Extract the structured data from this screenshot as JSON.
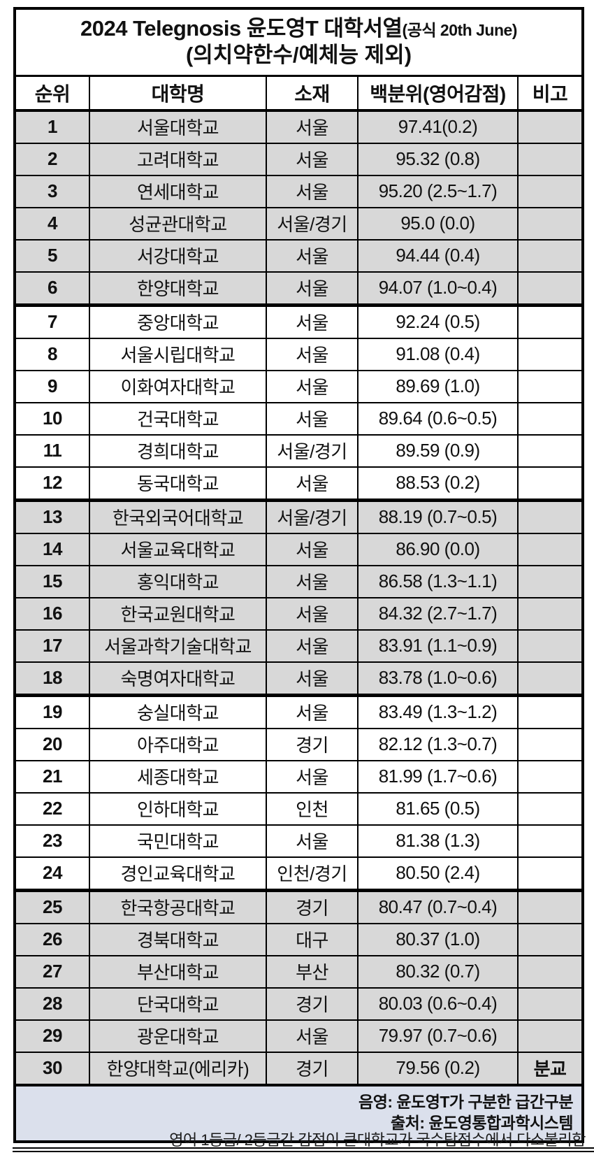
{
  "title": {
    "line1_main": "2024 Telegnosis 윤도영T 대학서열",
    "line1_sub": "(공식 20th June)",
    "line2": "(의치약한수/예체능 제외)"
  },
  "columns": [
    "순위",
    "대학명",
    "소재",
    "백분위(영어감점)",
    "비고"
  ],
  "rows": [
    {
      "rank": "1",
      "name": "서울대학교",
      "location": "서울",
      "percentile": "97.41(0.2)",
      "note": "",
      "shaded": true
    },
    {
      "rank": "2",
      "name": "고려대학교",
      "location": "서울",
      "percentile": "95.32 (0.8)",
      "note": "",
      "shaded": true
    },
    {
      "rank": "3",
      "name": "연세대학교",
      "location": "서울",
      "percentile": "95.20 (2.5~1.7)",
      "note": "",
      "shaded": true
    },
    {
      "rank": "4",
      "name": "성균관대학교",
      "location": "서울/경기",
      "percentile": "95.0 (0.0)",
      "note": "",
      "shaded": true
    },
    {
      "rank": "5",
      "name": "서강대학교",
      "location": "서울",
      "percentile": "94.44 (0.4)",
      "note": "",
      "shaded": true
    },
    {
      "rank": "6",
      "name": "한양대학교",
      "location": "서울",
      "percentile": "94.07 (1.0~0.4)",
      "note": "",
      "shaded": true
    },
    {
      "rank": "7",
      "name": "중앙대학교",
      "location": "서울",
      "percentile": "92.24 (0.5)",
      "note": "",
      "shaded": false
    },
    {
      "rank": "8",
      "name": "서울시립대학교",
      "location": "서울",
      "percentile": "91.08 (0.4)",
      "note": "",
      "shaded": false
    },
    {
      "rank": "9",
      "name": "이화여자대학교",
      "location": "서울",
      "percentile": "89.69 (1.0)",
      "note": "",
      "shaded": false
    },
    {
      "rank": "10",
      "name": "건국대학교",
      "location": "서울",
      "percentile": "89.64 (0.6~0.5)",
      "note": "",
      "shaded": false
    },
    {
      "rank": "11",
      "name": "경희대학교",
      "location": "서울/경기",
      "percentile": "89.59 (0.9)",
      "note": "",
      "shaded": false
    },
    {
      "rank": "12",
      "name": "동국대학교",
      "location": "서울",
      "percentile": "88.53 (0.2)",
      "note": "",
      "shaded": false
    },
    {
      "rank": "13",
      "name": "한국외국어대학교",
      "location": "서울/경기",
      "percentile": "88.19 (0.7~0.5)",
      "note": "",
      "shaded": true
    },
    {
      "rank": "14",
      "name": "서울교육대학교",
      "location": "서울",
      "percentile": "86.90 (0.0)",
      "note": "",
      "shaded": true
    },
    {
      "rank": "15",
      "name": "홍익대학교",
      "location": "서울",
      "percentile": "86.58 (1.3~1.1)",
      "note": "",
      "shaded": true
    },
    {
      "rank": "16",
      "name": "한국교원대학교",
      "location": "서울",
      "percentile": "84.32 (2.7~1.7)",
      "note": "",
      "shaded": true
    },
    {
      "rank": "17",
      "name": "서울과학기술대학교",
      "location": "서울",
      "percentile": "83.91 (1.1~0.9)",
      "note": "",
      "shaded": true
    },
    {
      "rank": "18",
      "name": "숙명여자대학교",
      "location": "서울",
      "percentile": "83.78 (1.0~0.6)",
      "note": "",
      "shaded": true
    },
    {
      "rank": "19",
      "name": "숭실대학교",
      "location": "서울",
      "percentile": "83.49 (1.3~1.2)",
      "note": "",
      "shaded": false
    },
    {
      "rank": "20",
      "name": "아주대학교",
      "location": "경기",
      "percentile": "82.12 (1.3~0.7)",
      "note": "",
      "shaded": false
    },
    {
      "rank": "21",
      "name": "세종대학교",
      "location": "서울",
      "percentile": "81.99 (1.7~0.6)",
      "note": "",
      "shaded": false
    },
    {
      "rank": "22",
      "name": "인하대학교",
      "location": "인천",
      "percentile": "81.65 (0.5)",
      "note": "",
      "shaded": false
    },
    {
      "rank": "23",
      "name": "국민대학교",
      "location": "서울",
      "percentile": "81.38 (1.3)",
      "note": "",
      "shaded": false
    },
    {
      "rank": "24",
      "name": "경인교육대학교",
      "location": "인천/경기",
      "percentile": "80.50 (2.4)",
      "note": "",
      "shaded": false
    },
    {
      "rank": "25",
      "name": "한국항공대학교",
      "location": "경기",
      "percentile": "80.47 (0.7~0.4)",
      "note": "",
      "shaded": true
    },
    {
      "rank": "26",
      "name": "경북대학교",
      "location": "대구",
      "percentile": "80.37 (1.0)",
      "note": "",
      "shaded": true
    },
    {
      "rank": "27",
      "name": "부산대학교",
      "location": "부산",
      "percentile": "80.32 (0.7)",
      "note": "",
      "shaded": true
    },
    {
      "rank": "28",
      "name": "단국대학교",
      "location": "경기",
      "percentile": "80.03 (0.6~0.4)",
      "note": "",
      "shaded": true
    },
    {
      "rank": "29",
      "name": "광운대학교",
      "location": "서울",
      "percentile": "79.97 (0.7~0.6)",
      "note": "",
      "shaded": true
    },
    {
      "rank": "30",
      "name": "한양대학교(에리카)",
      "location": "경기",
      "percentile": "79.56 (0.2)",
      "note": "분교",
      "shaded": true
    }
  ],
  "footer": {
    "line1": "음영: 윤도영T가 구분한 급간구분",
    "line2": "출처: 윤도영통합과학시스템"
  },
  "footnote": "영어 1등급/ 2등급간 감점이 큰대학교가 국수탐점수에서 다소불리함",
  "colors": {
    "shaded_row": "#d8d8d8",
    "footer_bg": "#dbe0ec",
    "border": "#000000",
    "text": "#111111"
  }
}
